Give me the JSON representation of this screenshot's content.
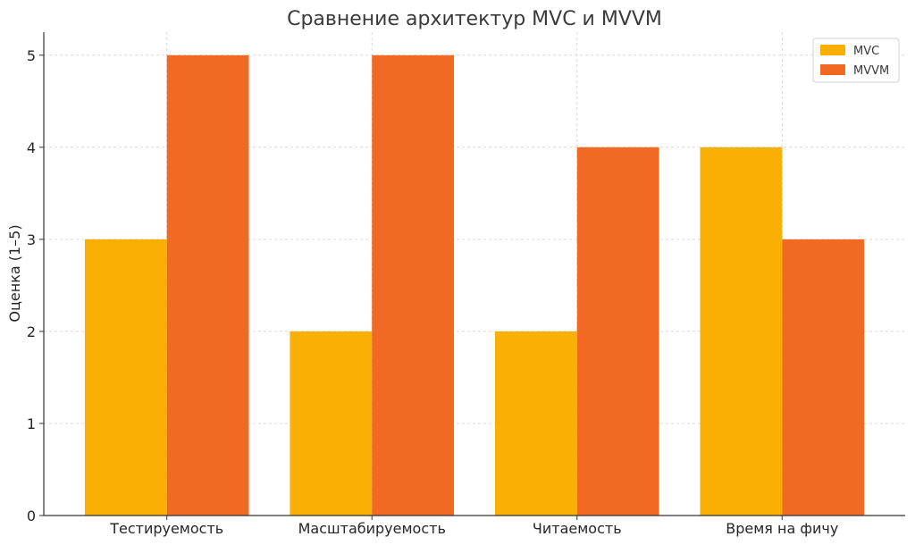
{
  "chart_data": {
    "type": "bar",
    "title": "Сравнение архитектур MVC и MVVM",
    "xlabel": "",
    "ylabel": "Оценка (1–5)",
    "categories": [
      "Тестируемость",
      "Масштабируемость",
      "Читаемость",
      "Время на фичу"
    ],
    "series": [
      {
        "name": "MVC",
        "color": "#FAAF05",
        "values": [
          3,
          2,
          2,
          4
        ]
      },
      {
        "name": "MVVM",
        "color": "#F06A24",
        "values": [
          5,
          5,
          4,
          3
        ]
      }
    ],
    "ylim": [
      0,
      5.25
    ],
    "yticks": [
      "0",
      "1",
      "2",
      "3",
      "4",
      "5"
    ],
    "grid": true,
    "legend": "top-right"
  }
}
